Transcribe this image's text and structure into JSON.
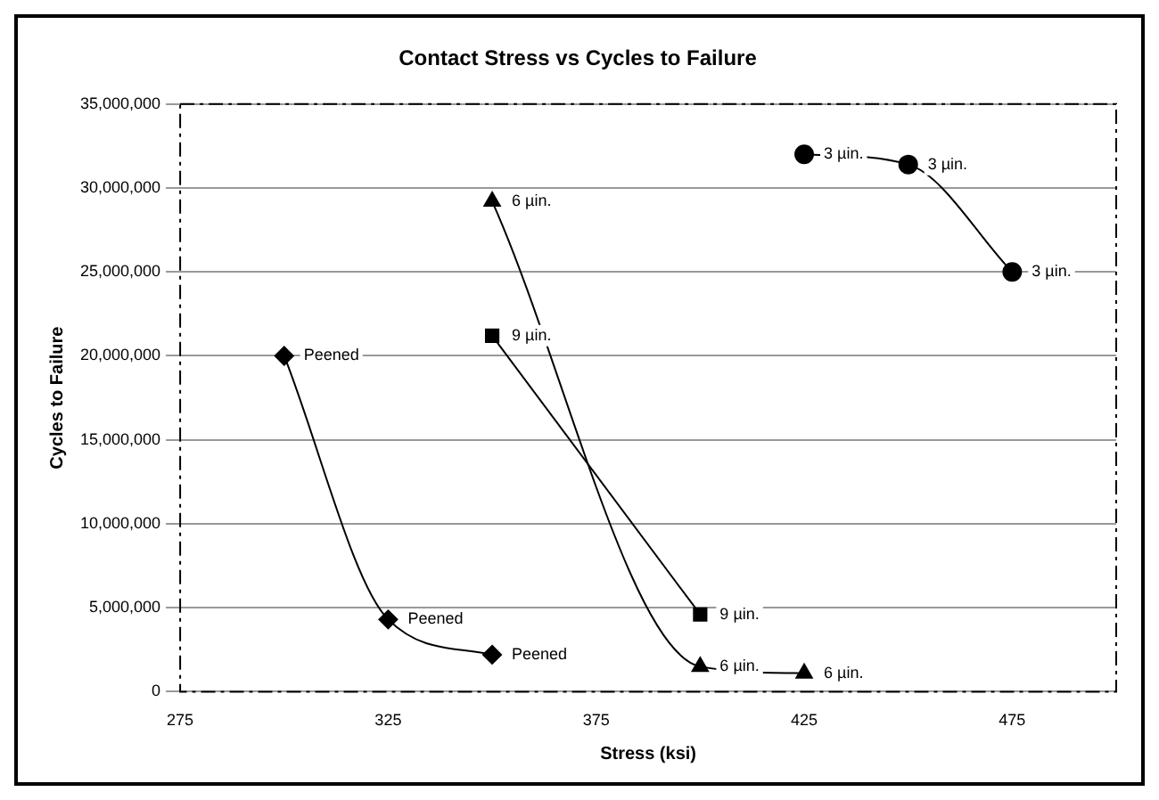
{
  "chart_data": {
    "type": "line",
    "title": "Contact Stress vs Cycles to Failure",
    "xlabel": "Stress (ksi)",
    "ylabel": "Cycles to Failure",
    "xlim": [
      275,
      500
    ],
    "xticks": [
      275,
      325,
      375,
      425,
      475
    ],
    "ylim": [
      0,
      35000000
    ],
    "yticks": [
      0,
      {
        "value": 5000000,
        "label": "5,000,000"
      },
      {
        "value": 10000000,
        "label": "10,000,000"
      },
      {
        "value": 15000000,
        "label": "15,000,000"
      },
      {
        "value": 20000000,
        "label": "20,000,000"
      },
      {
        "value": 25000000,
        "label": "25,000,000"
      },
      {
        "value": 30000000,
        "label": "30,000,000"
      },
      {
        "value": 35000000,
        "label": "35,000,000"
      }
    ],
    "grid": "y",
    "legend": false,
    "series": [
      {
        "name": "Peened",
        "color": "#000000",
        "marker": "diamond",
        "x": [
          300,
          325,
          350
        ],
        "values": [
          20000000,
          4300000,
          2200000
        ]
      },
      {
        "name": "9 µin.",
        "color": "#000000",
        "marker": "square",
        "x": [
          350,
          400
        ],
        "values": [
          21200000,
          4600000
        ]
      },
      {
        "name": "6 µin.",
        "color": "#000000",
        "marker": "triangle",
        "x": [
          350,
          400,
          425
        ],
        "values": [
          29200000,
          1500000,
          1100000
        ]
      },
      {
        "name": "3 µin.",
        "color": "#000000",
        "marker": "circle",
        "x": [
          425,
          450,
          475
        ],
        "values": [
          32000000,
          31400000,
          25000000
        ]
      }
    ]
  }
}
